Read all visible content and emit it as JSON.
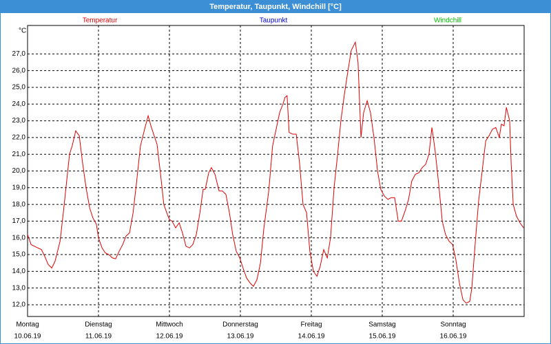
{
  "chart_data": {
    "type": "line",
    "title": "Temperatur, Taupunkt, Windchill [°C]",
    "y_unit": "°C",
    "grid": true,
    "xlim": [
      0,
      168
    ],
    "ylim": [
      11.3,
      28.7
    ],
    "xticks": [
      {
        "value": 0,
        "label": [
          "Montag",
          "10.06.19"
        ]
      },
      {
        "value": 24,
        "label": [
          "Dienstag",
          "11.06.19"
        ]
      },
      {
        "value": 48,
        "label": [
          "Mittwoch",
          "12.06.19"
        ]
      },
      {
        "value": 72,
        "label": [
          "Donnerstag",
          "13.06.19"
        ]
      },
      {
        "value": 96,
        "label": [
          "Freitag",
          "14.06.19"
        ]
      },
      {
        "value": 120,
        "label": [
          "Samstag",
          "15.06.19"
        ]
      },
      {
        "value": 144,
        "label": [
          "Sonntag",
          "16.06.19"
        ]
      }
    ],
    "yticks": [
      {
        "value": 12,
        "label": "12,0"
      },
      {
        "value": 13,
        "label": "13,0"
      },
      {
        "value": 14,
        "label": "14,0"
      },
      {
        "value": 15,
        "label": "15,0"
      },
      {
        "value": 16,
        "label": "16,0"
      },
      {
        "value": 17,
        "label": "17,0"
      },
      {
        "value": 18,
        "label": "18,0"
      },
      {
        "value": 19,
        "label": "19,0"
      },
      {
        "value": 20,
        "label": "20,0"
      },
      {
        "value": 21,
        "label": "21,0"
      },
      {
        "value": 22,
        "label": "22,0"
      },
      {
        "value": 23,
        "label": "23,0"
      },
      {
        "value": 24,
        "label": "24,0"
      },
      {
        "value": 25,
        "label": "25,0"
      },
      {
        "value": 26,
        "label": "26,0"
      },
      {
        "value": 27,
        "label": "27,0"
      }
    ],
    "x": [
      0,
      1.2,
      2.3,
      4.7,
      5.8,
      7.0,
      8.2,
      9.3,
      11.0,
      12.1,
      13.3,
      14.2,
      15.1,
      16.3,
      17.5,
      18.6,
      19.8,
      21.0,
      22.1,
      23.3,
      24.0,
      25.2,
      26.3,
      27.5,
      28.7,
      29.8,
      31.0,
      32.2,
      33.3,
      34.5,
      35.7,
      36.8,
      38.2,
      39.6,
      40.8,
      41.9,
      43.8,
      45.0,
      46.1,
      47.3,
      48.0,
      48.9,
      50.1,
      51.3,
      52.4,
      53.6,
      54.8,
      55.9,
      57.1,
      58.3,
      59.4,
      60.1,
      61.3,
      62.2,
      63.4,
      64.8,
      65.9,
      67.1,
      68.3,
      69.4,
      70.6,
      71.8,
      72.9,
      74.1,
      75.3,
      76.4,
      77.6,
      78.8,
      79.9,
      81.6,
      82.9,
      84.1,
      85.3,
      86.4,
      87.1,
      87.8,
      88.5,
      89.7,
      90.9,
      92.0,
      93.2,
      94.4,
      95.5,
      96.7,
      97.9,
      99.0,
      100.2,
      101.4,
      102.5,
      103.7,
      104.9,
      106.0,
      107.2,
      108.4,
      109.5,
      110.9,
      111.8,
      112.8,
      113.7,
      114.9,
      116.0,
      117.2,
      118.4,
      119.5,
      120.7,
      121.9,
      123.0,
      124.2,
      125.4,
      126.5,
      127.7,
      128.9,
      130.0,
      131.2,
      132.4,
      133.5,
      134.7,
      135.8,
      136.8,
      137.9,
      139.1,
      140.3,
      141.4,
      142.6,
      143.8,
      144.9,
      146.1,
      147.3,
      148.4,
      149.6,
      150.3,
      151.5,
      152.6,
      153.8,
      155.0,
      156.1,
      157.3,
      158.4,
      159.6,
      160.3,
      161.2,
      162.0,
      163.1,
      163.6,
      164.3,
      165.4,
      166.6,
      167.8
    ],
    "series": [
      {
        "name": "Temperatur",
        "color": "#e00000",
        "values": [
          16.2,
          15.6,
          15.5,
          15.3,
          14.9,
          14.4,
          14.2,
          14.6,
          15.8,
          17.5,
          19.5,
          21.0,
          21.5,
          22.4,
          22.1,
          20.5,
          19.0,
          17.8,
          17.2,
          16.8,
          16.0,
          15.4,
          15.1,
          15.0,
          14.8,
          14.75,
          15.2,
          15.6,
          16.1,
          16.3,
          17.5,
          19.2,
          21.5,
          22.5,
          23.3,
          22.6,
          21.6,
          19.8,
          18.0,
          17.4,
          17.1,
          17.0,
          16.6,
          16.9,
          16.3,
          15.5,
          15.4,
          15.6,
          16.2,
          17.5,
          18.9,
          18.9,
          19.9,
          20.2,
          19.8,
          18.8,
          18.8,
          18.6,
          17.5,
          16.2,
          15.2,
          14.8,
          14.2,
          13.6,
          13.3,
          13.1,
          13.5,
          14.5,
          16.5,
          18.8,
          21.5,
          22.5,
          23.5,
          24.0,
          24.4,
          24.5,
          22.3,
          22.2,
          22.2,
          20.5,
          18.0,
          17.5,
          15.2,
          14.0,
          13.7,
          14.3,
          15.3,
          14.8,
          16.0,
          19.0,
          21.0,
          23.0,
          24.6,
          26.0,
          27.2,
          27.7,
          26.5,
          22.0,
          23.5,
          24.2,
          23.5,
          22.0,
          20.0,
          18.9,
          18.5,
          18.3,
          18.4,
          18.4,
          17.0,
          17.0,
          17.6,
          18.3,
          19.4,
          19.8,
          19.9,
          20.2,
          20.4,
          21.0,
          22.6,
          21.2,
          19.2,
          17.0,
          16.2,
          15.8,
          15.6,
          14.7,
          13.3,
          12.3,
          12.1,
          12.2,
          13.0,
          15.8,
          18.2,
          20.0,
          21.8,
          22.1,
          22.5,
          22.6,
          22.0,
          22.8,
          22.7,
          23.8,
          23.0,
          20.5,
          18.0,
          17.3,
          16.9,
          16.6
        ]
      },
      {
        "name": "Taupunkt",
        "color": "#0000e0"
      },
      {
        "name": "Windchill",
        "color": "#00c000"
      }
    ]
  }
}
